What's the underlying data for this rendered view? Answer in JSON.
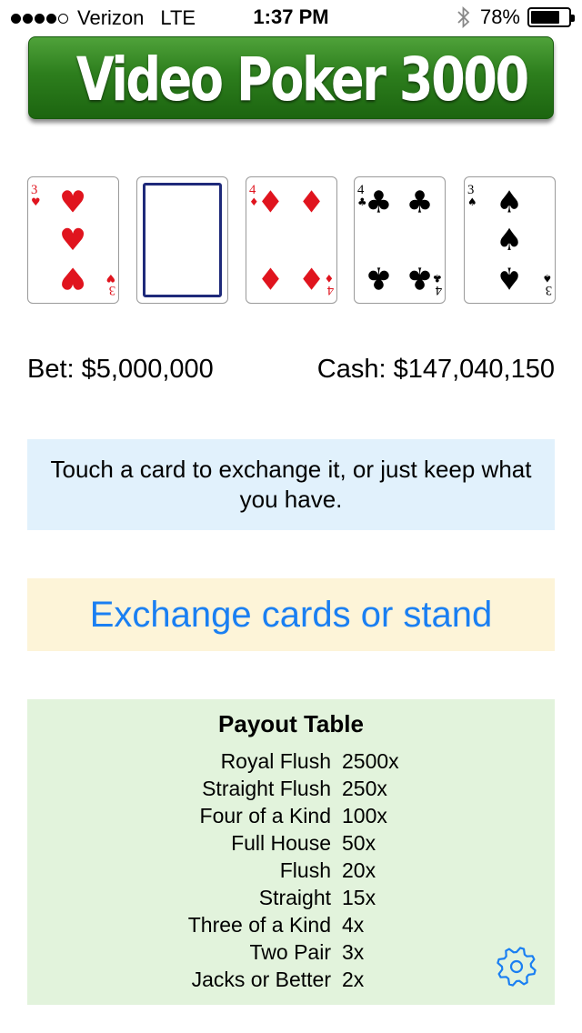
{
  "status_bar": {
    "carrier": "Verizon",
    "network": "LTE",
    "time": "1:37 PM",
    "battery": "78%",
    "battery_level": 0.78,
    "signal_bars_filled": 4,
    "signal_bars_total": 5
  },
  "app": {
    "title": "Video Poker 3000"
  },
  "cards": [
    {
      "rank": "3",
      "suit": "hearts",
      "symbol": "♥",
      "color": "#e0141e",
      "face_down": false
    },
    {
      "rank": "",
      "suit": "",
      "symbol": "",
      "color": "#1f2a7a",
      "face_down": true
    },
    {
      "rank": "4",
      "suit": "diamonds",
      "symbol": "♦",
      "color": "#e0141e",
      "face_down": false
    },
    {
      "rank": "4",
      "suit": "clubs",
      "symbol": "♣",
      "color": "#000000",
      "face_down": false
    },
    {
      "rank": "3",
      "suit": "spades",
      "symbol": "♠",
      "color": "#000000",
      "face_down": false
    }
  ],
  "money": {
    "bet": "Bet: $5,000,000",
    "cash": "Cash: $147,040,150"
  },
  "message": "Touch a card to exchange it, or just keep what you have.",
  "action_button": "Exchange cards or stand",
  "payout_table": {
    "title": "Payout Table",
    "rows": [
      {
        "hand": "Royal Flush",
        "multiplier": "2500x"
      },
      {
        "hand": "Straight Flush",
        "multiplier": "250x"
      },
      {
        "hand": "Four of a Kind",
        "multiplier": "100x"
      },
      {
        "hand": "Full House",
        "multiplier": "50x"
      },
      {
        "hand": "Flush",
        "multiplier": "20x"
      },
      {
        "hand": "Straight",
        "multiplier": "15x"
      },
      {
        "hand": "Three of a Kind",
        "multiplier": "4x"
      },
      {
        "hand": "Two Pair",
        "multiplier": "3x"
      },
      {
        "hand": "Jacks or Better",
        "multiplier": "2x"
      }
    ]
  },
  "colors": {
    "title_green": "#2d7e1d",
    "button_blue": "#1a7ff2",
    "message_bg": "#e1f1fc",
    "button_bg": "#fdf4d8",
    "payout_bg": "#e2f3dc"
  },
  "icons": {
    "settings": "gear-icon",
    "bluetooth": "bluetooth-icon"
  }
}
